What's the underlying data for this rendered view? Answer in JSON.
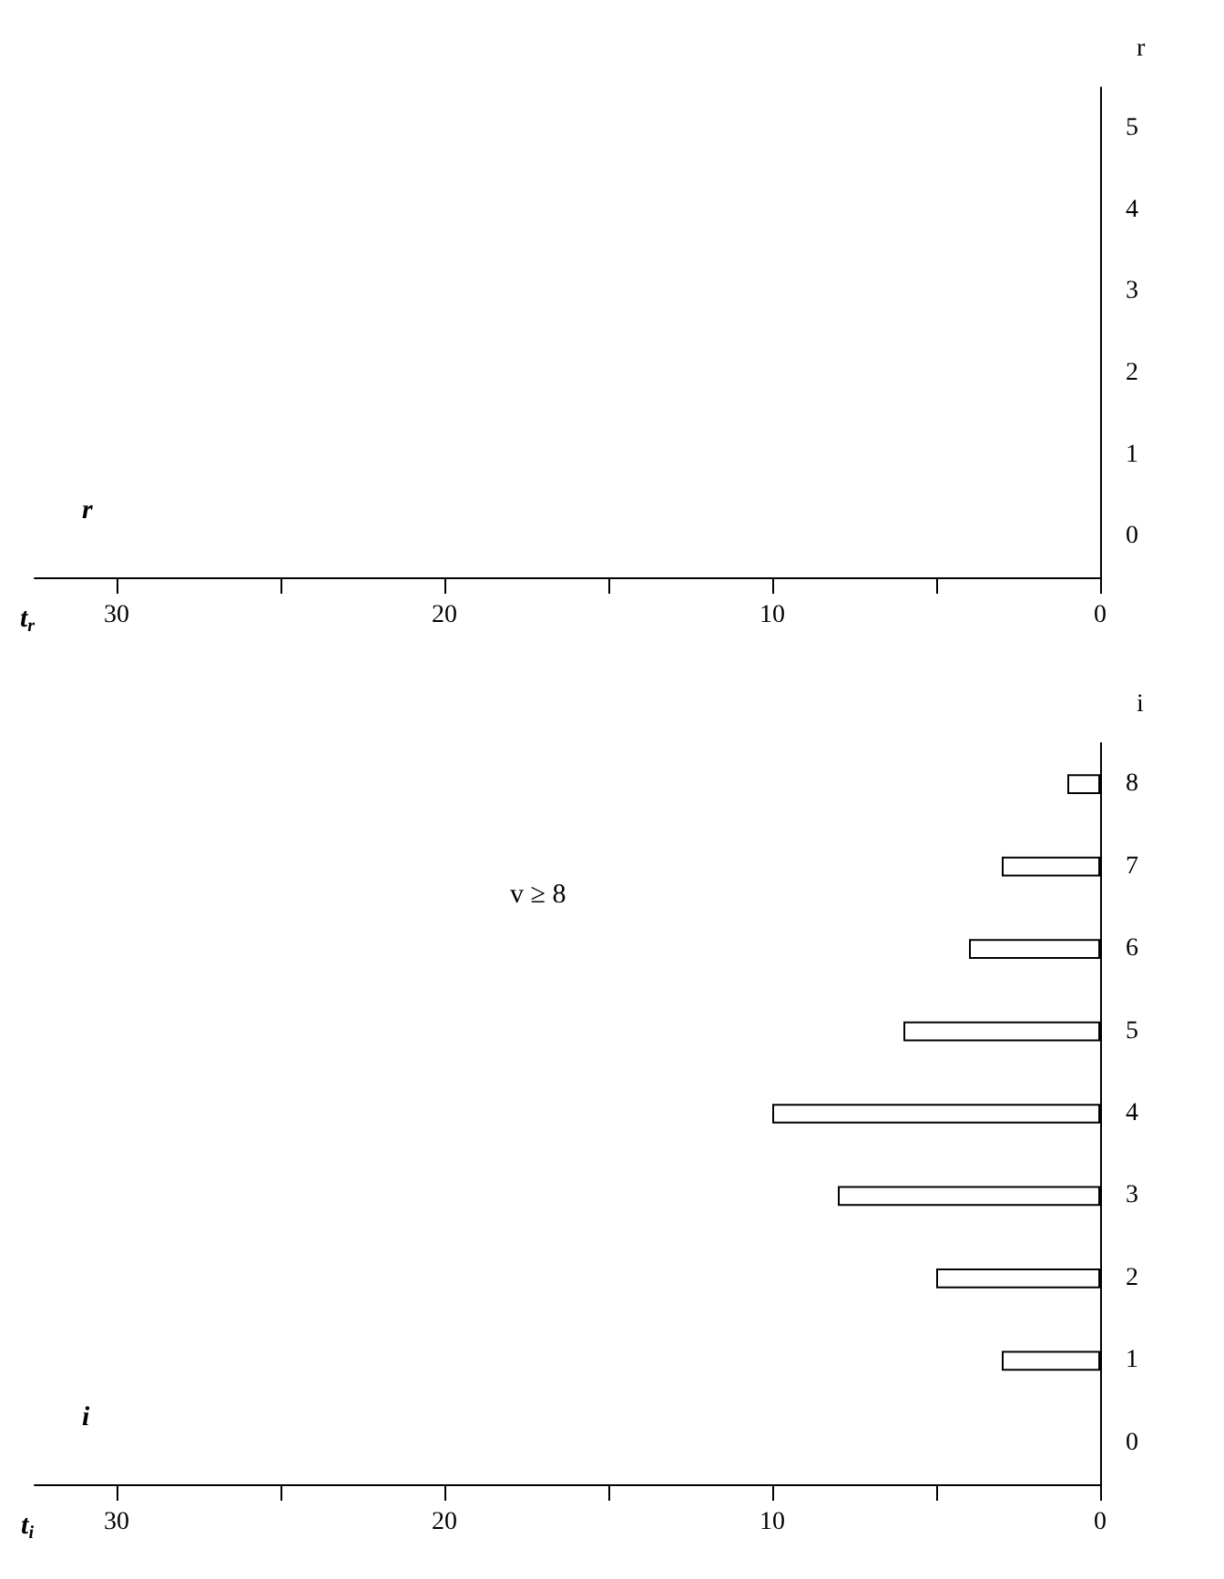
{
  "chart_data": [
    {
      "type": "bar",
      "orientation": "horizontal",
      "title": "r",
      "xlabel": "t$_{r}$",
      "ylabel": "r",
      "categories": [
        "5",
        "4",
        "3",
        "2",
        "1",
        "0"
      ],
      "values": [
        null,
        null,
        null,
        null,
        null,
        null
      ],
      "xlim": [
        32.5,
        0
      ],
      "xticks": [
        {
          "value": 30,
          "label": "30"
        },
        {
          "value": 25,
          "label": null
        },
        20,
        {
          "value": 15,
          "label": null
        },
        10,
        {
          "value": 5,
          "label": null
        },
        0
      ],
      "grid": false
    },
    {
      "type": "bar",
      "orientation": "horizontal",
      "title": "i",
      "xlabel": "t$_{i}$",
      "ylabel": "i",
      "categories": [
        "8",
        "7",
        "6",
        "5",
        "4",
        "3",
        "2",
        "1",
        "0"
      ],
      "values": [
        1,
        3,
        4,
        6,
        10,
        8,
        5,
        3,
        null
      ],
      "color": "#ffffff",
      "xlim": [
        32.5,
        0
      ],
      "xticks": [
        30,
        {
          "value": 25,
          "label": null
        },
        20,
        {
          "value": 15,
          "label": null
        },
        10,
        {
          "value": 5,
          "label": null
        },
        0
      ],
      "annotations": [
        "v ≥ 8"
      ],
      "grid": false
    }
  ]
}
